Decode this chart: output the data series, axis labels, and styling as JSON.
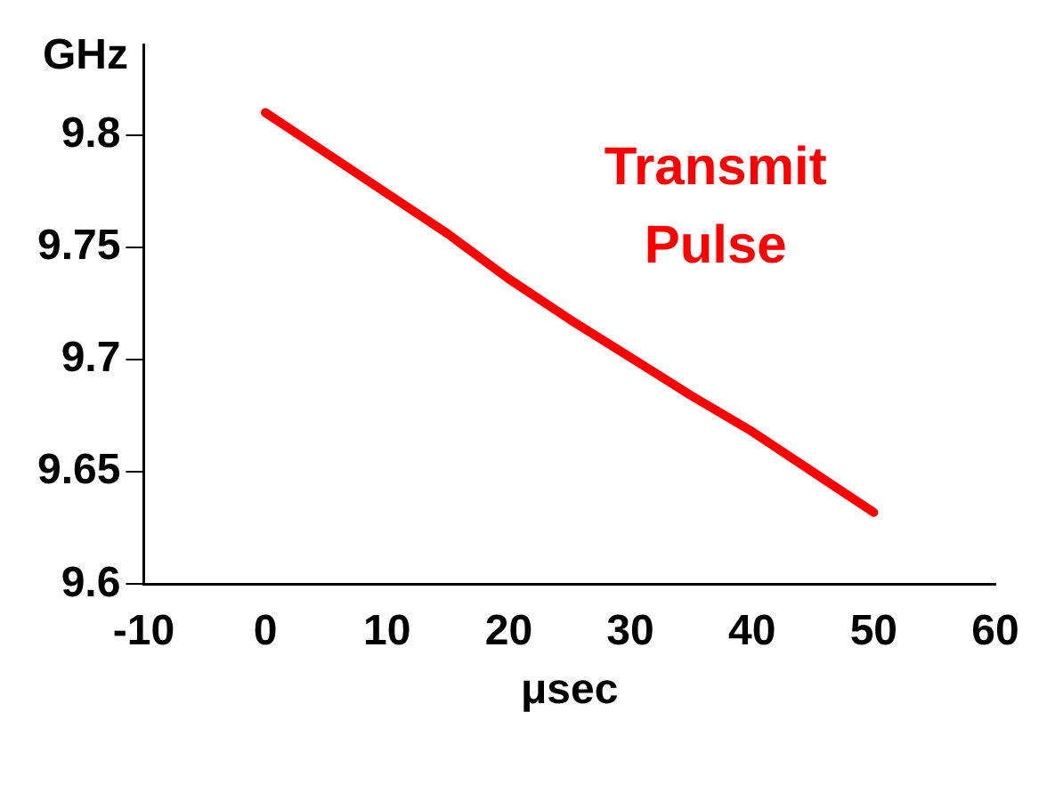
{
  "chart_data": {
    "type": "line",
    "xlabel": "μsec",
    "ylabel": "GHz",
    "x": [
      0,
      5,
      10,
      15,
      20,
      25,
      30,
      35,
      40,
      45,
      50
    ],
    "series": [
      {
        "name": "Transmit Pulse",
        "color": "#ff0000",
        "values": [
          9.81,
          9.792,
          9.774,
          9.756,
          9.736,
          9.718,
          9.701,
          9.684,
          9.668,
          9.65,
          9.632
        ]
      }
    ],
    "xlim": [
      -10,
      60
    ],
    "xticks": [
      -10,
      0,
      10,
      20,
      30,
      40,
      50,
      60
    ],
    "ylim": [
      9.6,
      9.84
    ],
    "yticks": [
      9.6,
      9.65,
      9.7,
      9.75,
      9.8
    ],
    "grid": false,
    "legend": false,
    "marker": "none",
    "line_style": "solid"
  }
}
